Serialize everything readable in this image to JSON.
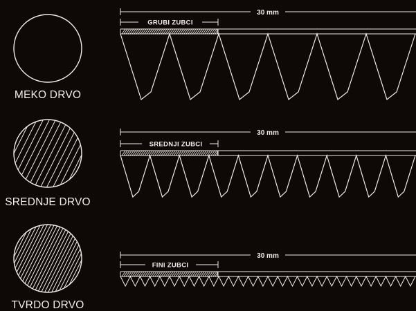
{
  "colors": {
    "background": "#0e0806",
    "line": "#f2ede8"
  },
  "rows": [
    {
      "wood_label": "MEKO DRVO",
      "length_label": "30 mm",
      "section_label": "GRUBI ZUBCI",
      "hatch": "none",
      "teeth_count": 6
    },
    {
      "wood_label": "SREDNJE DRVO",
      "length_label": "30 mm",
      "section_label": "SREDNJI ZUBCI",
      "hatch": "sparse",
      "teeth_count": 10
    },
    {
      "wood_label": "TVRDO DRVO",
      "length_label": "30 mm",
      "section_label": "FINI ZUBCI",
      "hatch": "dense",
      "teeth_count": 30
    }
  ]
}
